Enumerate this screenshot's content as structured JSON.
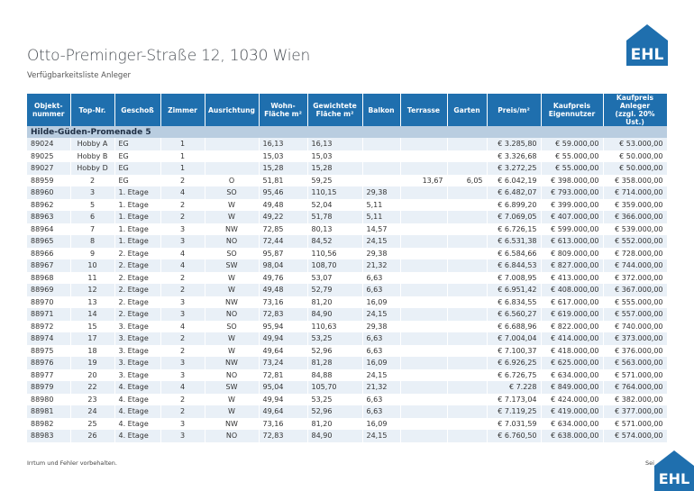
{
  "header": {
    "title": "Otto-Preminger-Straße 12, 1030 Wien",
    "subtitle": "Verfügbarkeitsliste Anleger",
    "logo": "EHL"
  },
  "table": {
    "columns": [
      "Objekt-\nnummer",
      "Top-Nr.",
      "Geschoß",
      "Zimmer",
      "Ausrichtung",
      "Wohn-\nFläche m²",
      "Gewichtete\nFläche m²",
      "Balkon",
      "Terrasse",
      "Garten",
      "Preis/m²",
      "Kaufpreis\nEigennutzer",
      "Kaufpreis\nAnleger\n(zzgl. 20% Ust.)"
    ],
    "section": "Hilde-Güden-Promenade 5",
    "rows": [
      [
        "89024",
        "Hobby A",
        "EG",
        "1",
        null,
        "16,13",
        "16,13",
        null,
        null,
        null,
        "€ 3.285,80",
        "€ 59.000,00",
        "€ 53.000,00"
      ],
      [
        "89025",
        "Hobby B",
        "EG",
        "1",
        null,
        "15,03",
        "15,03",
        null,
        null,
        null,
        "€ 3.326,68",
        "€ 55.000,00",
        "€ 50.000,00"
      ],
      [
        "89027",
        "Hobby D",
        "EG",
        "1",
        null,
        "15,28",
        "15,28",
        null,
        null,
        null,
        "€ 3.272,25",
        "€ 55.000,00",
        "€ 50.000,00"
      ],
      [
        "88959",
        "2",
        "EG",
        "2",
        "O",
        "51,81",
        "59,25",
        null,
        "13,67",
        "6,05",
        "€ 6.042,19",
        "€ 398.000,00",
        "€ 358.000,00"
      ],
      [
        "88960",
        "3",
        "1. Etage",
        "4",
        "SO",
        "95,46",
        "110,15",
        "29,38",
        null,
        null,
        "€ 6.482,07",
        "€ 793.000,00",
        "€ 714.000,00"
      ],
      [
        "88962",
        "5",
        "1. Etage",
        "2",
        "W",
        "49,48",
        "52,04",
        "5,11",
        null,
        null,
        "€ 6.899,20",
        "€ 399.000,00",
        "€ 359.000,00"
      ],
      [
        "88963",
        "6",
        "1. Etage",
        "2",
        "W",
        "49,22",
        "51,78",
        "5,11",
        null,
        null,
        "€ 7.069,05",
        "€ 407.000,00",
        "€ 366.000,00"
      ],
      [
        "88964",
        "7",
        "1. Etage",
        "3",
        "NW",
        "72,85",
        "80,13",
        "14,57",
        null,
        null,
        "€ 6.726,15",
        "€ 599.000,00",
        "€ 539.000,00"
      ],
      [
        "88965",
        "8",
        "1. Etage",
        "3",
        "NO",
        "72,44",
        "84,52",
        "24,15",
        null,
        null,
        "€ 6.531,38",
        "€ 613.000,00",
        "€ 552.000,00"
      ],
      [
        "88966",
        "9",
        "2. Etage",
        "4",
        "SO",
        "95,87",
        "110,56",
        "29,38",
        null,
        null,
        "€ 6.584,66",
        "€ 809.000,00",
        "€ 728.000,00"
      ],
      [
        "88967",
        "10",
        "2. Etage",
        "4",
        "SW",
        "98,04",
        "108,70",
        "21,32",
        null,
        null,
        "€ 6.844,53",
        "€ 827.000,00",
        "€ 744.000,00"
      ],
      [
        "88968",
        "11",
        "2. Etage",
        "2",
        "W",
        "49,76",
        "53,07",
        "6,63",
        null,
        null,
        "€ 7.008,95",
        "€ 413.000,00",
        "€ 372.000,00"
      ],
      [
        "88969",
        "12",
        "2. Etage",
        "2",
        "W",
        "49,48",
        "52,79",
        "6,63",
        null,
        null,
        "€ 6.951,42",
        "€ 408.000,00",
        "€ 367.000,00"
      ],
      [
        "88970",
        "13",
        "2. Etage",
        "3",
        "NW",
        "73,16",
        "81,20",
        "16,09",
        null,
        null,
        "€ 6.834,55",
        "€ 617.000,00",
        "€ 555.000,00"
      ],
      [
        "88971",
        "14",
        "2. Etage",
        "3",
        "NO",
        "72,83",
        "84,90",
        "24,15",
        null,
        null,
        "€ 6.560,27",
        "€ 619.000,00",
        "€ 557.000,00"
      ],
      [
        "88972",
        "15",
        "3. Etage",
        "4",
        "SO",
        "95,94",
        "110,63",
        "29,38",
        null,
        null,
        "€ 6.688,96",
        "€ 822.000,00",
        "€ 740.000,00"
      ],
      [
        "88974",
        "17",
        "3. Etage",
        "2",
        "W",
        "49,94",
        "53,25",
        "6,63",
        null,
        null,
        "€ 7.004,04",
        "€ 414.000,00",
        "€ 373.000,00"
      ],
      [
        "88975",
        "18",
        "3. Etage",
        "2",
        "W",
        "49,64",
        "52,96",
        "6,63",
        null,
        null,
        "€ 7.100,37",
        "€ 418.000,00",
        "€ 376.000,00"
      ],
      [
        "88976",
        "19",
        "3. Etage",
        "3",
        "NW",
        "73,24",
        "81,28",
        "16,09",
        null,
        null,
        "€ 6.926,25",
        "€ 625.000,00",
        "€ 563.000,00"
      ],
      [
        "88977",
        "20",
        "3. Etage",
        "3",
        "NO",
        "72,81",
        "84,88",
        "24,15",
        null,
        null,
        "€ 6.726,75",
        "€ 634.000,00",
        "€ 571.000,00"
      ],
      [
        "88979",
        "22",
        "4. Etage",
        "4",
        "SW",
        "95,04",
        "105,70",
        "21,32",
        null,
        null,
        "€ 7.228",
        "€ 849.000,00",
        "€ 764.000,00"
      ],
      [
        "88980",
        "23",
        "4. Etage",
        "2",
        "W",
        "49,94",
        "53,25",
        "6,63",
        null,
        null,
        "€ 7.173,04",
        "€ 424.000,00",
        "€ 382.000,00"
      ],
      [
        "88981",
        "24",
        "4. Etage",
        "2",
        "W",
        "49,64",
        "52,96",
        "6,63",
        null,
        null,
        "€ 7.119,25",
        "€ 419.000,00",
        "€ 377.000,00"
      ],
      [
        "88982",
        "25",
        "4. Etage",
        "3",
        "NW",
        "73,16",
        "81,20",
        "16,09",
        null,
        null,
        "€ 7.031,59",
        "€ 634.000,00",
        "€ 571.000,00"
      ],
      [
        "88983",
        "26",
        "4. Etage",
        "3",
        "NO",
        "72,83",
        "84,90",
        "24,15",
        null,
        null,
        "€ 6.760,50",
        "€ 638.000,00",
        "€ 574.000,00"
      ]
    ]
  },
  "footer": {
    "note": "Irrtum und Fehler vorbehalten.",
    "page": "Sei"
  }
}
